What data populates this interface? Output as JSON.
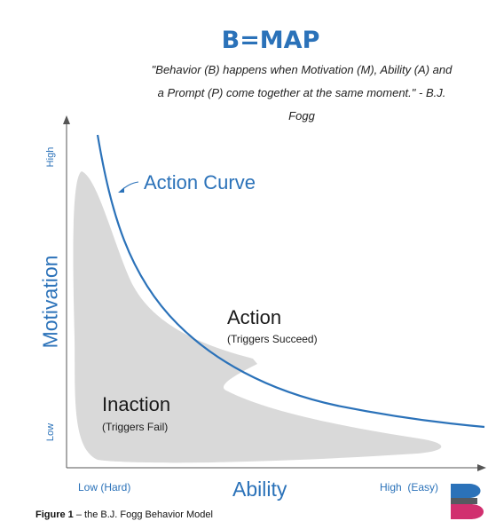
{
  "header": {
    "title": "B=MAP",
    "quote_line1": "\"Behavior (B) happens when Motivation (M), Ability (A) and",
    "quote_line2": "a Prompt (P) come together at the same moment.\" - B.J.",
    "quote_line3": "Fogg"
  },
  "axes": {
    "y_label": "Motivation",
    "y_high": "High",
    "y_low": "Low",
    "x_label": "Ability",
    "x_low": "Low (Hard)",
    "x_high": "High  (Easy)"
  },
  "regions": {
    "action_title": "Action",
    "action_sub": "(Triggers Succeed)",
    "inaction_title": "Inaction",
    "inaction_sub": "(Triggers Fail)",
    "curve_label": "Action Curve"
  },
  "caption": {
    "bold": "Figure 1",
    "rest": " – the B.J. Fogg Behavior Model"
  },
  "colors": {
    "accent_blue": "#2b72b9",
    "inaction_fill": "#d9d9d9",
    "logo_blue": "#2b72b9",
    "logo_gray": "#555a60",
    "logo_pink": "#d1306f"
  }
}
